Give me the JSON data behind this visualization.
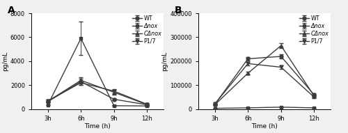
{
  "time_labels": [
    "3h",
    "6h",
    "9h",
    "12h"
  ],
  "time_values": [
    1,
    2,
    3,
    4
  ],
  "panel_A": {
    "title": "A",
    "ylabel": "pg/mL",
    "xlabel": "Time (h)",
    "ylim": [
      0,
      8000
    ],
    "yticks": [
      0,
      2000,
      4000,
      6000,
      8000
    ],
    "series": {
      "WT": {
        "y": [
          620,
          2300,
          820,
          360
        ],
        "yerr": [
          80,
          260,
          100,
          50
        ]
      },
      "Δnox": {
        "y": [
          350,
          5900,
          280,
          260
        ],
        "yerr": [
          40,
          1400,
          40,
          35
        ]
      },
      "CΔnox": {
        "y": [
          650,
          2400,
          1400,
          370
        ],
        "yerr": [
          90,
          250,
          190,
          55
        ]
      },
      "P1/7": {
        "y": [
          680,
          2200,
          1500,
          400
        ],
        "yerr": [
          90,
          180,
          180,
          55
        ]
      }
    }
  },
  "panel_B": {
    "title": "B",
    "ylabel": "pg/mL",
    "xlabel": "Time (h)",
    "ylim": [
      0,
      400000
    ],
    "yticks": [
      0,
      100000,
      200000,
      300000,
      400000
    ],
    "series": {
      "WT": {
        "y": [
          20000,
          210000,
          220000,
          60000
        ],
        "yerr": [
          2000,
          7000,
          9000,
          5000
        ]
      },
      "Δnox": {
        "y": [
          3000,
          5000,
          8000,
          5000
        ],
        "yerr": [
          500,
          500,
          500,
          500
        ]
      },
      "CΔnox": {
        "y": [
          18000,
          150000,
          265000,
          55000
        ],
        "yerr": [
          2000,
          7000,
          11000,
          5000
        ]
      },
      "P1/7": {
        "y": [
          22000,
          190000,
          175000,
          50000
        ],
        "yerr": [
          2000,
          7000,
          8000,
          4000
        ]
      }
    }
  },
  "series_keys": [
    "WT",
    "Δnox",
    "CΔnox",
    "P1/7"
  ],
  "legend_labels": [
    "WT",
    "Δnox",
    "CΔnox",
    "P1/7"
  ],
  "markers": [
    "o",
    "s",
    "^",
    "v"
  ],
  "color": "#3c3c3c",
  "linewidth": 1.0,
  "markersize": 3.5,
  "capsize": 2,
  "legend_fontsize": 5.8,
  "axis_label_fontsize": 6.5,
  "tick_fontsize": 6.0,
  "panel_label_fontsize": 10,
  "bg_color": "#f0f0f0"
}
